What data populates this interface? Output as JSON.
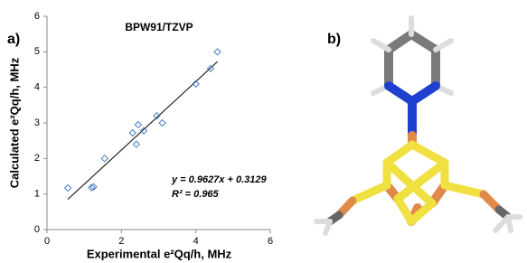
{
  "panels": [
    "a)",
    "b)"
  ],
  "chart_data": {
    "type": "scatter",
    "title": "BPW91/TZVP",
    "x_label": "Experimental e²Qq/h, MHz",
    "y_label": "Calculated e²Qq/h, MHz",
    "annotations": [
      "y = 0.9627x + 0.3129",
      "R² = 0.965"
    ],
    "series": [
      {
        "name": "BPW91/TZVP",
        "color": "#4a7cc4",
        "x": [
          0.56,
          1.2,
          1.25,
          1.55,
          2.3,
          2.4,
          2.45,
          2.6,
          2.95,
          3.1,
          4.0,
          4.4,
          4.58
        ],
        "values": [
          1.17,
          1.18,
          1.2,
          2.0,
          2.72,
          2.4,
          2.95,
          2.78,
          3.2,
          3.0,
          4.1,
          4.53,
          5.0
        ]
      }
    ],
    "trendline": {
      "slope": 0.9627,
      "intercept": 0.3129
    },
    "xlim": [
      0,
      6
    ],
    "ylim": [
      0,
      6
    ],
    "xticks": [
      0,
      2,
      4,
      6
    ],
    "yticks": [
      0,
      1,
      2,
      3,
      4,
      5,
      6
    ],
    "grid": false
  }
}
